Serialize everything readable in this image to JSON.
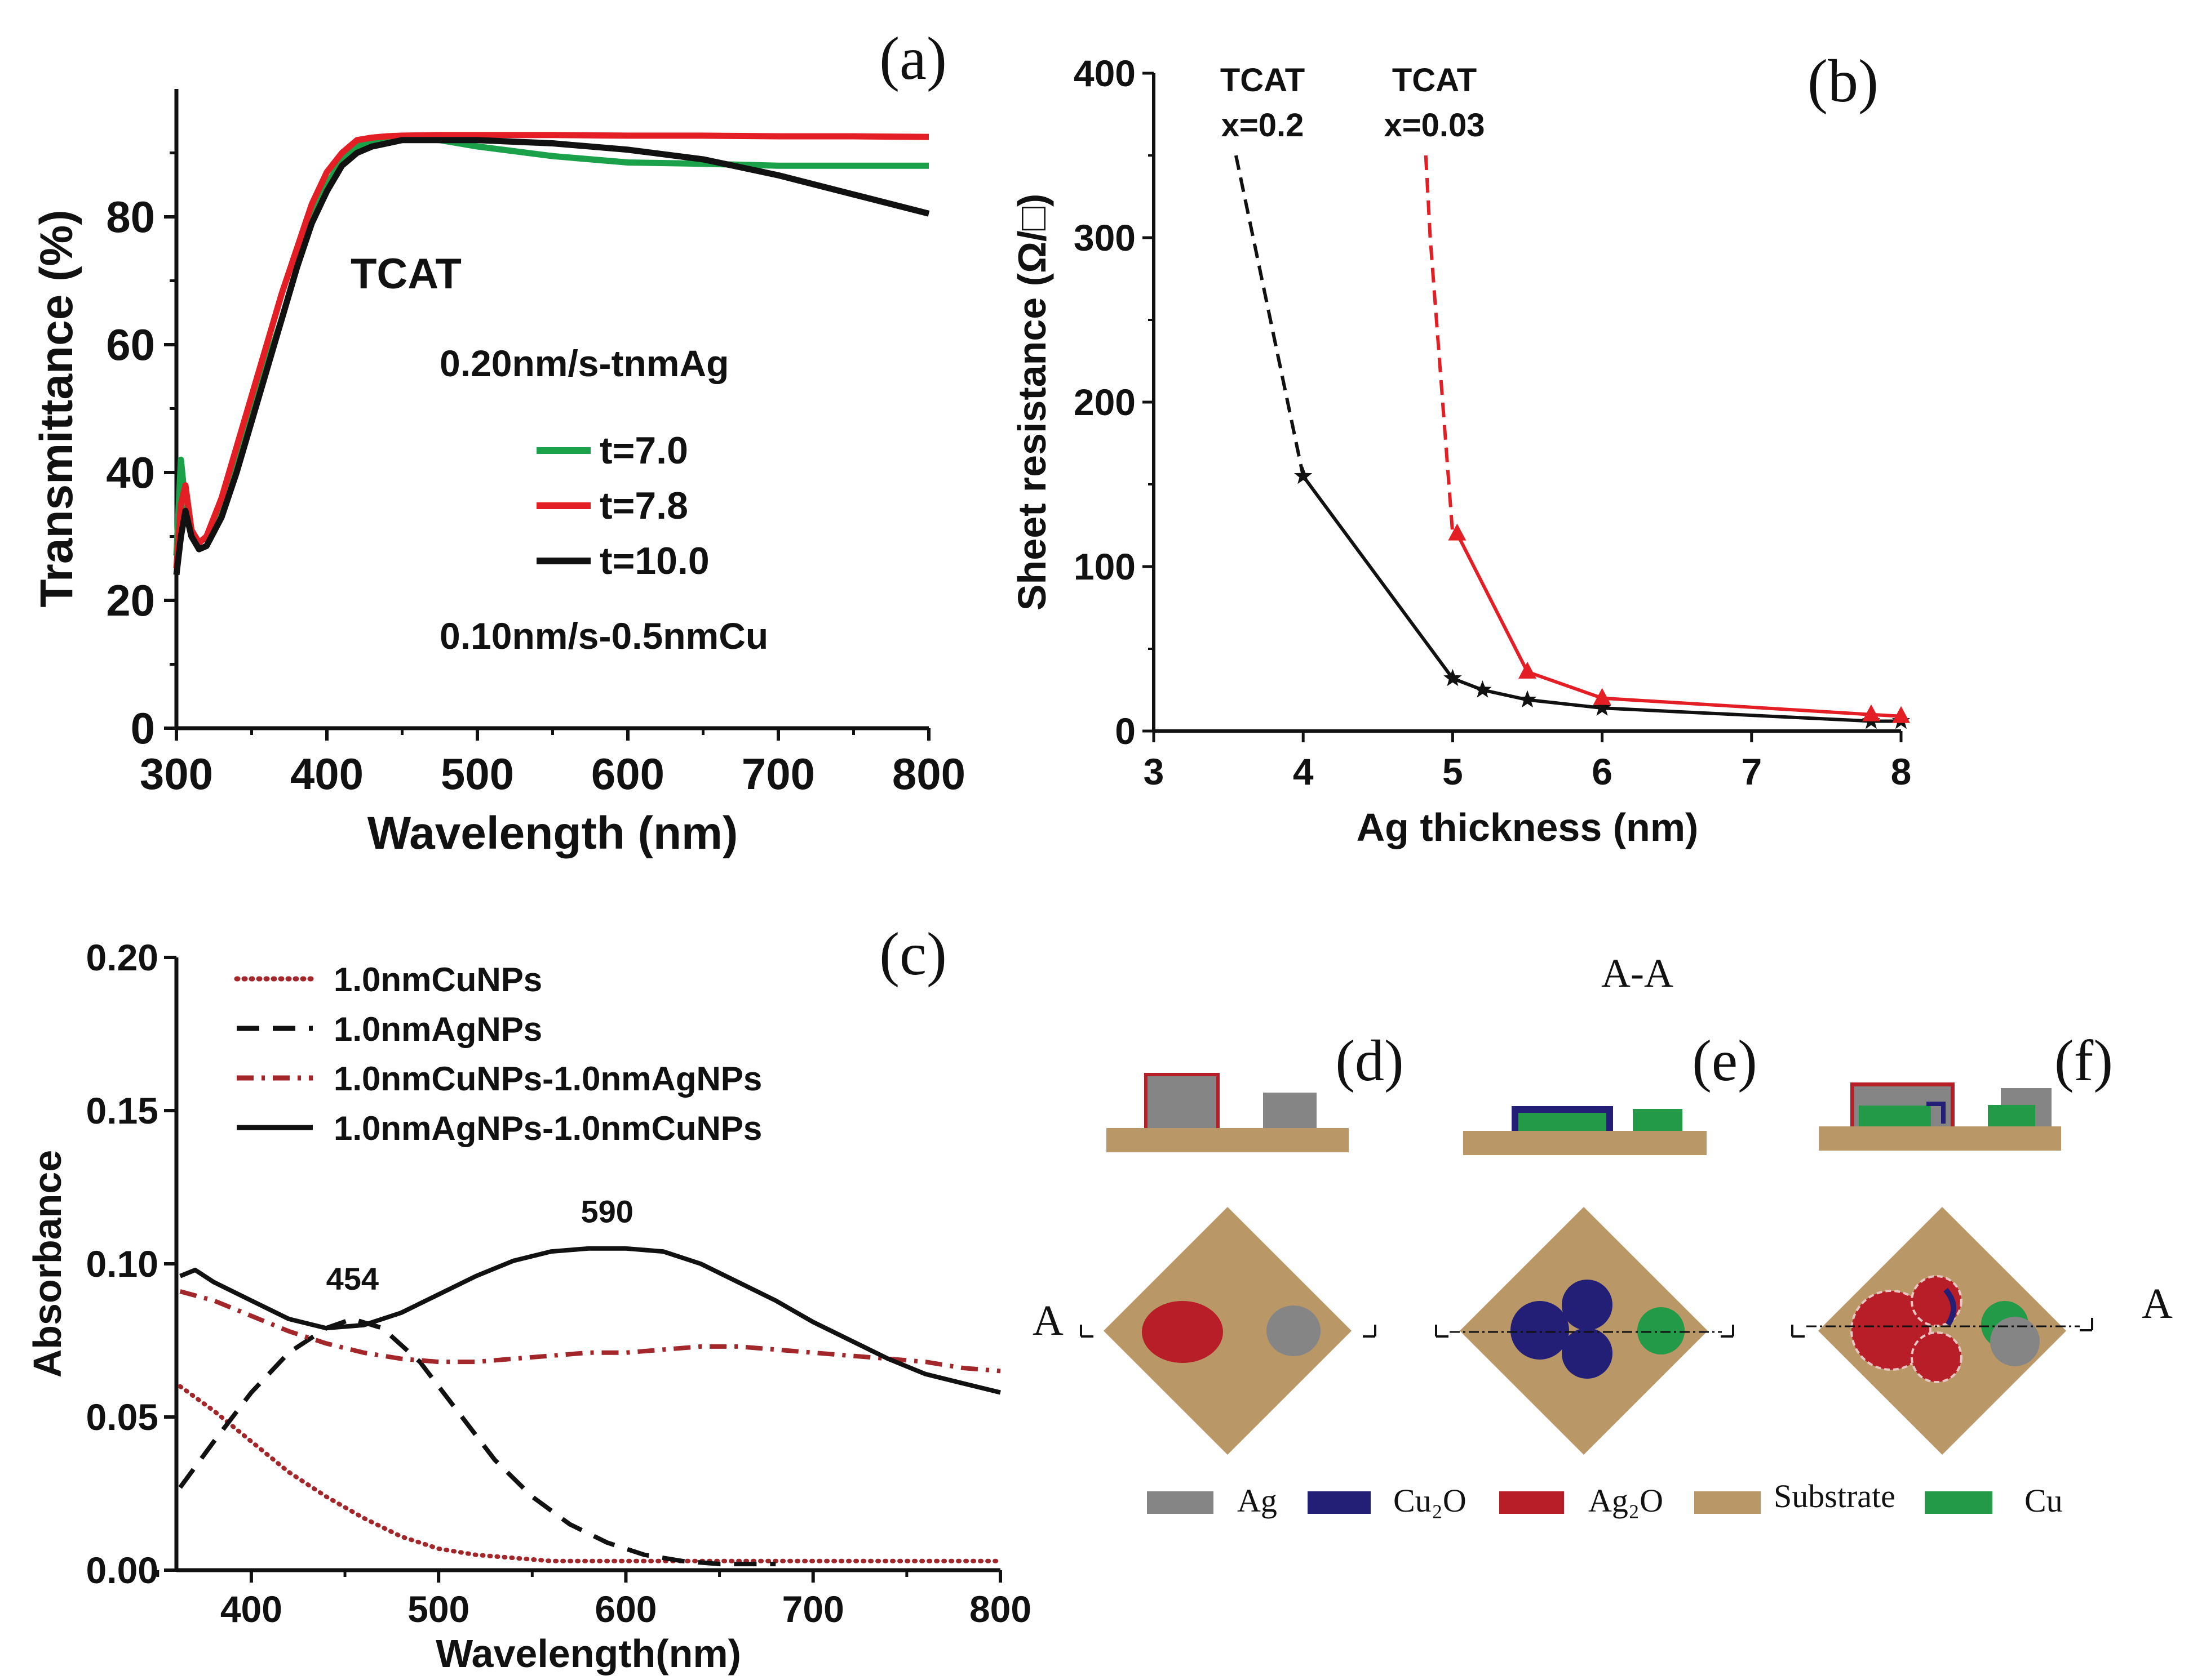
{
  "chart_data": [
    {
      "id": "a",
      "type": "line",
      "panel_label": "(a)",
      "xlabel": "Wavelength (nm)",
      "ylabel": "Transmittance (%)",
      "xlim": [
        300,
        800
      ],
      "ylim": [
        0,
        100
      ],
      "xticks": [
        "300",
        "400",
        "500",
        "600",
        "700",
        "800"
      ],
      "yticks": [
        "0",
        "20",
        "40",
        "60",
        "80"
      ],
      "annotations": [
        "TCAT",
        "0.20nm/s-tnmAg",
        "0.10nm/s-0.5nmCu"
      ],
      "series": [
        {
          "name": "t=7.0",
          "color": "#1ba149",
          "x": [
            300,
            303,
            306,
            310,
            315,
            320,
            330,
            340,
            350,
            360,
            370,
            380,
            390,
            400,
            410,
            420,
            430,
            440,
            450,
            475,
            500,
            550,
            600,
            650,
            700,
            750,
            800
          ],
          "y": [
            27,
            42,
            35,
            31,
            29,
            30,
            35,
            42,
            50,
            57,
            64,
            72,
            80,
            85,
            89,
            91,
            92,
            92.2,
            92.3,
            92,
            91,
            89.5,
            88.5,
            88.3,
            88,
            88,
            88
          ]
        },
        {
          "name": "t=7.8",
          "color": "#e31e24",
          "x": [
            300,
            303,
            306,
            310,
            315,
            320,
            330,
            340,
            350,
            360,
            370,
            380,
            390,
            400,
            410,
            420,
            430,
            440,
            450,
            475,
            500,
            550,
            600,
            650,
            700,
            750,
            800
          ],
          "y": [
            25,
            35,
            38,
            31,
            29,
            30,
            36,
            44,
            52,
            60,
            68,
            75,
            82,
            87,
            90,
            92,
            92.4,
            92.6,
            92.7,
            92.8,
            92.8,
            92.8,
            92.7,
            92.7,
            92.6,
            92.6,
            92.5
          ]
        },
        {
          "name": "t=10.0",
          "color": "#111111",
          "x": [
            300,
            303,
            306,
            310,
            315,
            320,
            330,
            340,
            350,
            360,
            370,
            380,
            390,
            400,
            410,
            420,
            430,
            440,
            450,
            475,
            500,
            550,
            600,
            650,
            700,
            750,
            800
          ],
          "y": [
            24,
            30,
            34,
            30,
            28,
            28.5,
            33,
            40,
            48,
            56,
            64,
            72,
            79,
            84,
            88,
            90,
            91,
            91.5,
            92,
            92,
            92,
            91.5,
            90.5,
            89,
            86.5,
            83.5,
            80.5
          ]
        }
      ]
    },
    {
      "id": "b",
      "type": "line",
      "panel_label": "(b)",
      "xlabel": "Ag thickness (nm)",
      "ylabel": "Sheet resistance (Ω/□)",
      "xlim": [
        3,
        8
      ],
      "ylim": [
        0,
        400
      ],
      "xticks": [
        "3",
        "4",
        "5",
        "6",
        "7",
        "8"
      ],
      "yticks": [
        "0",
        "100",
        "200",
        "300",
        "400"
      ],
      "annotations": [
        {
          "line1": "TCAT",
          "line2": "x=0.2"
        },
        {
          "line1": "TCAT",
          "line2": "x=0.03"
        }
      ],
      "series": [
        {
          "name": "TCAT x=0.2",
          "color": "#111111",
          "marker": "star",
          "dashed_x": [
            3.55,
            4.0
          ],
          "dashed_y": [
            350,
            155
          ],
          "x": [
            4.0,
            5.0,
            5.2,
            5.5,
            6.0,
            7.8,
            8.0
          ],
          "y": [
            155,
            32,
            25,
            19,
            14,
            6,
            6
          ]
        },
        {
          "name": "TCAT x=0.03",
          "color": "#e31e24",
          "marker": "triangle",
          "dashed_x": [
            4.82,
            4.85,
            5.0
          ],
          "dashed_y": [
            350,
            300,
            120
          ],
          "x": [
            5.03,
            5.5,
            6.0,
            7.8,
            8.0
          ],
          "y": [
            120,
            36,
            20,
            10,
            9
          ]
        }
      ]
    },
    {
      "id": "c",
      "type": "line",
      "panel_label": "(c)",
      "xlabel": "Wavelength(nm)",
      "ylabel": "Absorbance",
      "xlim": [
        360,
        800
      ],
      "ylim": [
        0,
        0.2
      ],
      "xticks": [
        "400",
        "500",
        "600",
        "700",
        "800"
      ],
      "yticks": [
        "0.00",
        "0.05",
        "0.10",
        "0.15",
        "0.20"
      ],
      "peak_labels": [
        "454",
        "590"
      ],
      "series": [
        {
          "name": "1.0nmCuNPs",
          "color": "#a3262a",
          "style": "dotted",
          "x": [
            362,
            380,
            400,
            420,
            440,
            460,
            480,
            500,
            520,
            540,
            560,
            600,
            650,
            700,
            750,
            800
          ],
          "y": [
            0.06,
            0.052,
            0.042,
            0.032,
            0.024,
            0.017,
            0.011,
            0.007,
            0.005,
            0.004,
            0.003,
            0.003,
            0.003,
            0.003,
            0.003,
            0.003
          ]
        },
        {
          "name": "1.0nmAgNPs",
          "color": "#111111",
          "style": "dashed",
          "x": [
            362,
            380,
            400,
            420,
            440,
            454,
            470,
            490,
            510,
            530,
            550,
            570,
            590,
            610,
            630,
            650,
            680
          ],
          "y": [
            0.027,
            0.042,
            0.058,
            0.071,
            0.079,
            0.082,
            0.079,
            0.068,
            0.052,
            0.036,
            0.024,
            0.015,
            0.009,
            0.005,
            0.003,
            0.002,
            0.002
          ]
        },
        {
          "name": "1.0nmCuNPs-1.0nmAgNPs",
          "color": "#a3262a",
          "style": "dashdot",
          "x": [
            362,
            380,
            400,
            420,
            440,
            460,
            480,
            500,
            520,
            540,
            560,
            580,
            600,
            620,
            640,
            660,
            680,
            700,
            720,
            740,
            760,
            780,
            800
          ],
          "y": [
            0.091,
            0.088,
            0.083,
            0.078,
            0.074,
            0.071,
            0.069,
            0.068,
            0.068,
            0.069,
            0.07,
            0.071,
            0.071,
            0.072,
            0.073,
            0.073,
            0.072,
            0.071,
            0.07,
            0.069,
            0.068,
            0.066,
            0.065
          ]
        },
        {
          "name": "1.0nmAgNPs-1.0nmCuNPs",
          "color": "#111111",
          "style": "solid",
          "x": [
            362,
            370,
            380,
            400,
            420,
            440,
            460,
            480,
            500,
            520,
            540,
            560,
            580,
            590,
            600,
            620,
            640,
            660,
            680,
            700,
            720,
            740,
            760,
            780,
            800
          ],
          "y": [
            0.096,
            0.098,
            0.094,
            0.088,
            0.082,
            0.079,
            0.08,
            0.084,
            0.09,
            0.096,
            0.101,
            0.104,
            0.105,
            0.105,
            0.105,
            0.104,
            0.1,
            0.094,
            0.088,
            0.081,
            0.075,
            0.069,
            0.064,
            0.061,
            0.058
          ]
        }
      ]
    }
  ],
  "diagram": {
    "section_title": "A-A",
    "section_marker": "A",
    "panels": [
      "(d)",
      "(e)",
      "(f)"
    ],
    "legend": [
      {
        "label": "Ag",
        "color": "#858585"
      },
      {
        "label": "Cu₂O",
        "color": "#231f76"
      },
      {
        "label": "Ag₂O",
        "color": "#b81e27"
      },
      {
        "label": "Substrate",
        "color": "#b99766"
      },
      {
        "label": "Cu",
        "color": "#239a47"
      }
    ]
  }
}
